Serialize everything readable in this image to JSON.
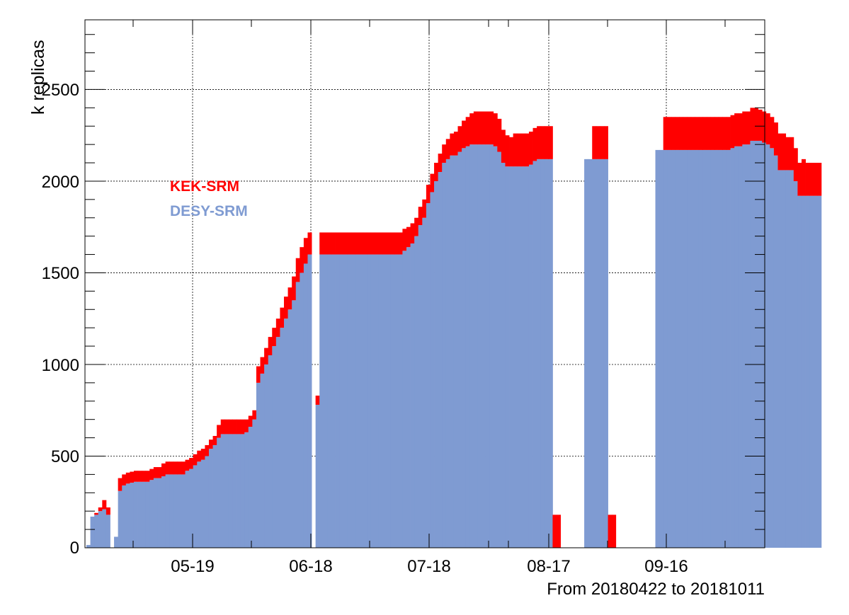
{
  "chart_data": {
    "type": "bar",
    "stacked": true,
    "ylabel": "k replicas",
    "xlabel": "From 20180422 to 20181011",
    "x_tick_labels": [
      "05-19",
      "06-18",
      "07-18",
      "08-17",
      "09-16"
    ],
    "y_tick_labels": [
      "0",
      "500",
      "1000",
      "1500",
      "2000",
      "2500"
    ],
    "ylim": [
      0,
      2880
    ],
    "grid": true,
    "legend_placement": "top-left",
    "series": [
      {
        "name": "DESY-SRM",
        "color": "#7f9bd2",
        "values": [
          15,
          170,
          180,
          200,
          210,
          180,
          0,
          60,
          310,
          340,
          350,
          355,
          360,
          360,
          360,
          360,
          370,
          380,
          380,
          390,
          400,
          400,
          400,
          400,
          400,
          420,
          430,
          450,
          470,
          480,
          500,
          540,
          560,
          600,
          620,
          620,
          620,
          620,
          620,
          620,
          630,
          660,
          700,
          900,
          950,
          1000,
          1050,
          1100,
          1150,
          1200,
          1250,
          1300,
          1350,
          1450,
          1500,
          1550,
          1600,
          0,
          780,
          1600,
          1600,
          1600,
          1600,
          1600,
          1600,
          1600,
          1600,
          1600,
          1600,
          1600,
          1600,
          1600,
          1600,
          1600,
          1600,
          1600,
          1600,
          1600,
          1600,
          1600,
          1620,
          1640,
          1660,
          1700,
          1760,
          1800,
          1880,
          1940,
          2000,
          2050,
          2100,
          2120,
          2140,
          2140,
          2160,
          2180,
          2190,
          2200,
          2200,
          2200,
          2200,
          2200,
          2200,
          2190,
          2160,
          2100,
          2080,
          2080,
          2080,
          2080,
          2080,
          2080,
          2090,
          2110,
          2120,
          2120,
          2120,
          2120,
          0,
          0,
          0,
          0,
          0,
          0,
          0,
          0,
          2120,
          2120,
          2120,
          2120,
          2120,
          2120,
          0,
          0,
          0,
          0,
          0,
          0,
          0,
          0,
          0,
          0,
          0,
          0,
          2170,
          2170,
          2170,
          2170,
          2170,
          2170,
          2170,
          2170,
          2170,
          2170,
          2170,
          2170,
          2170,
          2170,
          2170,
          2170,
          2170,
          2170,
          2170,
          2180,
          2190,
          2190,
          2200,
          2200,
          2220,
          2220,
          2220,
          2210,
          2200,
          2180,
          2140,
          2060,
          2060,
          2060,
          2060,
          2000,
          1920,
          1920,
          1920,
          1920,
          1920,
          1920
        ]
      },
      {
        "name": "KEK-SRM",
        "color": "#ff0000",
        "values": [
          0,
          0,
          10,
          20,
          50,
          40,
          0,
          0,
          70,
          60,
          60,
          60,
          60,
          60,
          60,
          60,
          60,
          60,
          60,
          70,
          70,
          70,
          70,
          70,
          70,
          60,
          60,
          60,
          60,
          60,
          60,
          50,
          50,
          70,
          80,
          80,
          80,
          80,
          80,
          80,
          70,
          60,
          50,
          90,
          90,
          90,
          100,
          100,
          100,
          110,
          120,
          120,
          130,
          130,
          140,
          140,
          120,
          0,
          50,
          120,
          120,
          120,
          120,
          120,
          120,
          120,
          120,
          120,
          120,
          120,
          120,
          120,
          120,
          120,
          120,
          120,
          120,
          120,
          120,
          120,
          120,
          110,
          110,
          100,
          100,
          100,
          100,
          100,
          100,
          100,
          100,
          110,
          120,
          130,
          140,
          150,
          160,
          170,
          180,
          180,
          180,
          180,
          180,
          180,
          180,
          180,
          170,
          160,
          180,
          180,
          180,
          180,
          180,
          180,
          180,
          180,
          180,
          180,
          180,
          180,
          0,
          0,
          0,
          0,
          0,
          0,
          0,
          0,
          180,
          180,
          180,
          180,
          180,
          180,
          0,
          0,
          0,
          0,
          0,
          0,
          0,
          0,
          0,
          0,
          0,
          0,
          180,
          180,
          180,
          180,
          180,
          180,
          180,
          180,
          180,
          180,
          180,
          180,
          180,
          180,
          180,
          180,
          180,
          180,
          180,
          180,
          180,
          180,
          180,
          180,
          170,
          170,
          170,
          170,
          180,
          200,
          200,
          180,
          180,
          180,
          180,
          200,
          180,
          180,
          180,
          180,
          180,
          180
        ]
      }
    ]
  }
}
